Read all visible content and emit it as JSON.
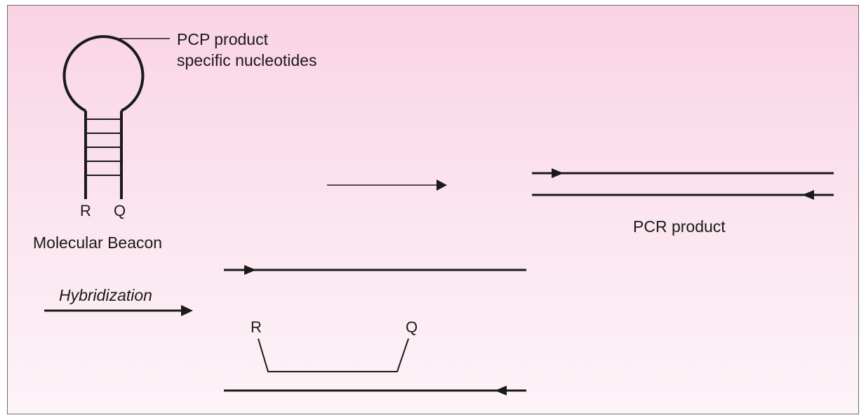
{
  "colors": {
    "line": "#1a1a1a",
    "frame": "#6e6e6e",
    "background_top": "#f9d3e4",
    "background_bottom": "#fdf3f8"
  },
  "beacon": {
    "loop_label_line1": "PCP product",
    "loop_label_line2": "specific nucleotides",
    "reporter_label": "R",
    "quencher_label": "Q",
    "caption": "Molecular Beacon"
  },
  "pcr": {
    "caption": "PCR product"
  },
  "hybridization": {
    "label": "Hybridization",
    "reporter_label": "R",
    "quencher_label": "Q"
  }
}
